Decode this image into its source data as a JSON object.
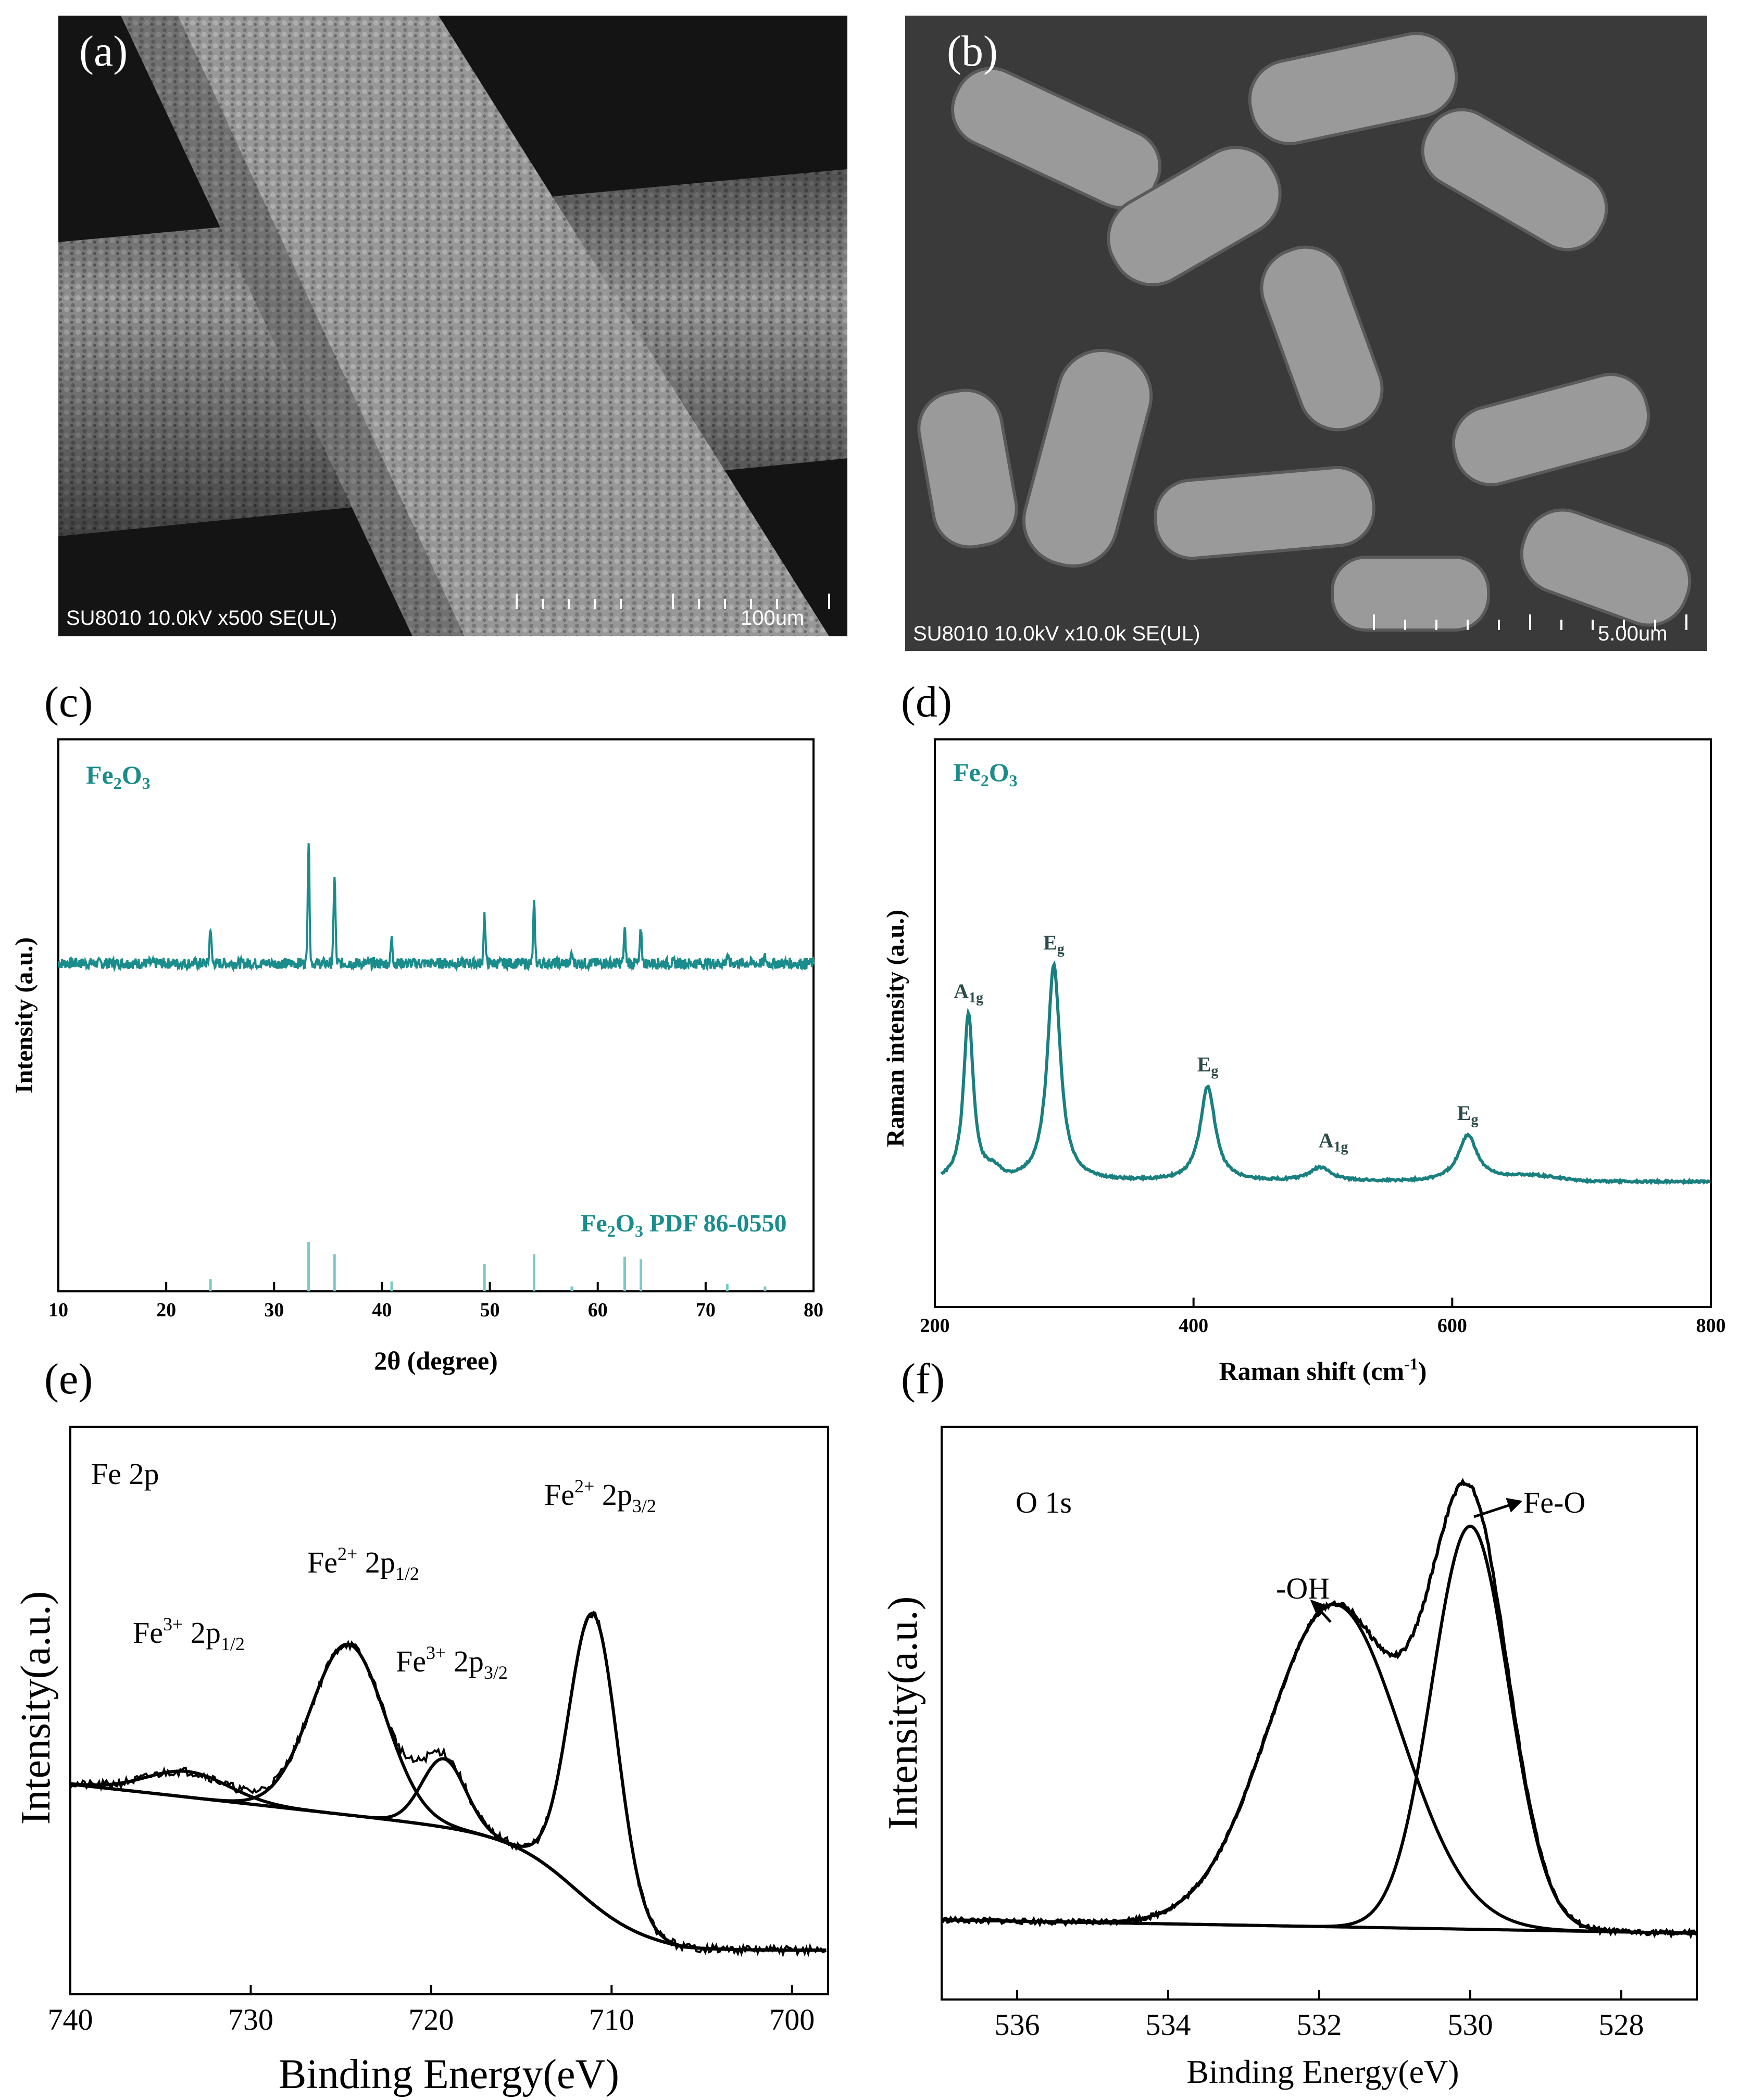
{
  "panel_a": {
    "label": "(a)",
    "info": "SU8010 10.0kV x500 SE(UL)",
    "scale": "100um"
  },
  "panel_b": {
    "label": "(b)",
    "info": "SU8010 10.0kV x10.0k SE(UL)",
    "scale": "5.00um"
  },
  "chart_data": [
    {
      "panel": "(c)",
      "type": "line",
      "title": "Fe2O3",
      "title_sub": "2",
      "title_sub2": "3",
      "xlabel": "2θ (degree)",
      "ylabel": "Intensity (a.u.)",
      "xlim": [
        10,
        80
      ],
      "xticks": [
        10,
        20,
        30,
        40,
        50,
        60,
        70,
        80
      ],
      "baseline": 0.05,
      "peaks": [
        {
          "x": 24.1,
          "y": 0.3
        },
        {
          "x": 33.2,
          "y": 1.0
        },
        {
          "x": 35.6,
          "y": 0.72
        },
        {
          "x": 40.9,
          "y": 0.2
        },
        {
          "x": 49.5,
          "y": 0.4
        },
        {
          "x": 54.1,
          "y": 0.48
        },
        {
          "x": 57.6,
          "y": 0.08
        },
        {
          "x": 62.5,
          "y": 0.27
        },
        {
          "x": 64.0,
          "y": 0.28
        },
        {
          "x": 72.0,
          "y": 0.07
        },
        {
          "x": 75.5,
          "y": 0.05
        }
      ],
      "reference": {
        "label": "Fe2O3 PDF 86-0550",
        "lines": [
          {
            "x": 24.1,
            "h": 0.25
          },
          {
            "x": 33.2,
            "h": 1.0
          },
          {
            "x": 35.6,
            "h": 0.75
          },
          {
            "x": 40.9,
            "h": 0.2
          },
          {
            "x": 49.5,
            "h": 0.55
          },
          {
            "x": 54.1,
            "h": 0.75
          },
          {
            "x": 57.6,
            "h": 0.1
          },
          {
            "x": 62.5,
            "h": 0.7
          },
          {
            "x": 64.0,
            "h": 0.65
          },
          {
            "x": 72.0,
            "h": 0.15
          },
          {
            "x": 75.5,
            "h": 0.1
          }
        ]
      },
      "color": "#1a8c8c"
    },
    {
      "panel": "(d)",
      "type": "line",
      "title": "Fe2O3",
      "xlabel": "Raman shift (cm-1)",
      "ylabel": "Raman intensity (a.u.)",
      "xlim": [
        200,
        800
      ],
      "xticks": [
        200,
        400,
        600,
        800
      ],
      "peaks": [
        {
          "x": 226,
          "y": 0.62,
          "label": "A1g"
        },
        {
          "x": 292,
          "y": 0.8,
          "label": "Eg"
        },
        {
          "x": 411,
          "y": 0.35,
          "label": "Eg"
        },
        {
          "x": 498,
          "y": 0.05,
          "label": "A1g"
        },
        {
          "x": 612,
          "y": 0.17,
          "label": "Eg"
        }
      ],
      "color": "#1a7f7f"
    },
    {
      "panel": "(e)",
      "type": "line",
      "annotation": "Fe 2p",
      "xlabel": "Binding Energy(eV)",
      "ylabel": "Intensity(a.u.)",
      "xlim": [
        740,
        698
      ],
      "xticks": [
        740,
        730,
        720,
        710,
        700
      ],
      "peaks": [
        {
          "x": 733.5,
          "label": "Fe3+ 2p1/2"
        },
        {
          "x": 724.6,
          "label": "Fe2+ 2p1/2"
        },
        {
          "x": 719.3,
          "label": "Fe3+ 2p3/2"
        },
        {
          "x": 711.0,
          "label": "Fe2+ 2p3/2"
        }
      ]
    },
    {
      "panel": "(f)",
      "type": "line",
      "annotation": "O 1s",
      "xlabel": "Binding Energy(eV)",
      "ylabel": "Intensity(a.u.)",
      "xlim": [
        537,
        527
      ],
      "xticks": [
        536,
        534,
        532,
        530,
        528
      ],
      "peaks": [
        {
          "x": 531.8,
          "label": "-OH"
        },
        {
          "x": 530.0,
          "label": "Fe-O"
        }
      ]
    }
  ],
  "labels": {
    "c": "(c)",
    "d": "(d)",
    "e": "(e)",
    "f": "(f)",
    "c_title_main": "Fe",
    "c_title_s1": "2",
    "c_title_m2": "O",
    "c_title_s2": "3",
    "c_ref_main": "Fe",
    "c_ref_s1": "2",
    "c_ref_m2": "O",
    "c_ref_s2": "3",
    "c_ref_rest": " PDF 86-0550",
    "c_ylabel": "Intensity (a.u.)",
    "c_xlabel": "2θ (degree)",
    "d_ylabel": "Raman intensity (a.u.)",
    "d_xlabel_main": "Raman shift (cm",
    "d_xlabel_sup": "-1",
    "d_xlabel_end": ")",
    "e_annot": "Fe 2p",
    "e_ylabel": "Intensity(a.u.)",
    "e_xlabel": "Binding Energy(eV)",
    "f_annot": "O 1s",
    "f_ylabel": "Intensity(a.u.)",
    "f_xlabel": "Binding Energy(eV)",
    "f_oh": "-OH",
    "f_feo": "Fe-O"
  }
}
